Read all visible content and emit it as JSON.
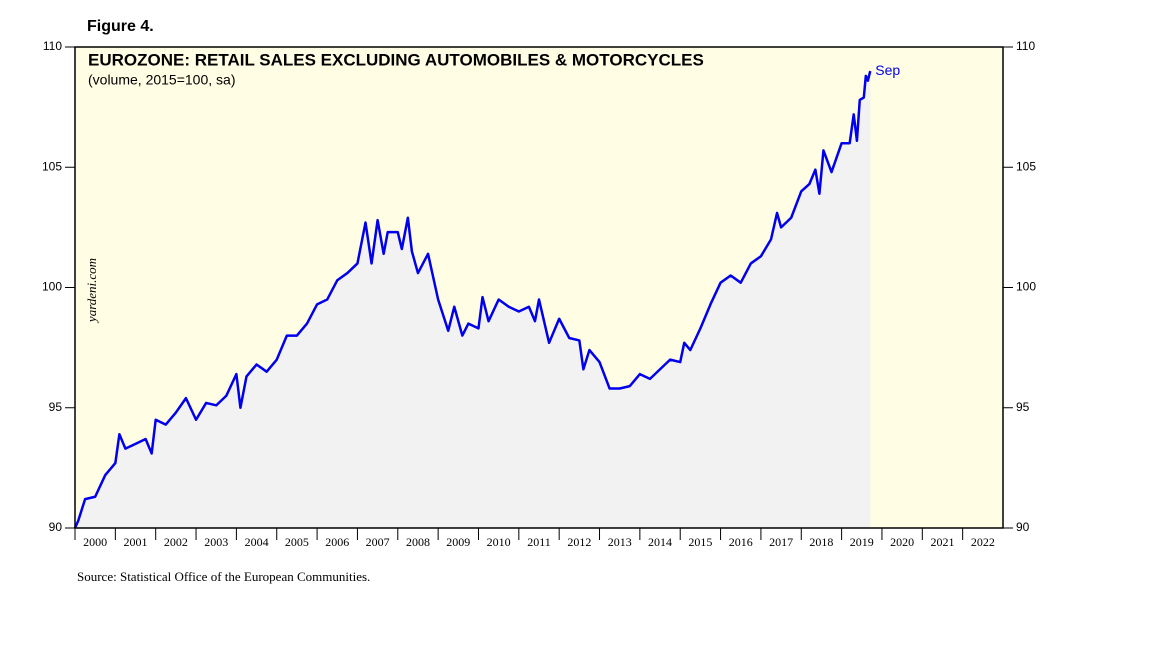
{
  "figure_label": "Figure 4.",
  "source": "Source: Statistical Office of the European Communities.",
  "watermark": "yardeni.com",
  "chart_data": {
    "type": "line",
    "title": "EUROZONE: RETAIL SALES EXCLUDING AUTOMOBILES & MOTORCYCLES",
    "subtitle": "(volume, 2015=100, sa)",
    "annotation": "Sep",
    "x": [
      2000.0,
      2000.08,
      2000.25,
      2000.5,
      2000.75,
      2001.0,
      2001.1,
      2001.25,
      2001.5,
      2001.75,
      2001.9,
      2002.0,
      2002.25,
      2002.5,
      2002.75,
      2003.0,
      2003.25,
      2003.5,
      2003.75,
      2004.0,
      2004.1,
      2004.25,
      2004.5,
      2004.75,
      2005.0,
      2005.25,
      2005.5,
      2005.75,
      2006.0,
      2006.25,
      2006.5,
      2006.75,
      2007.0,
      2007.2,
      2007.35,
      2007.5,
      2007.65,
      2007.75,
      2008.0,
      2008.1,
      2008.25,
      2008.35,
      2008.5,
      2008.75,
      2009.0,
      2009.25,
      2009.4,
      2009.6,
      2009.75,
      2010.0,
      2010.1,
      2010.25,
      2010.5,
      2010.75,
      2011.0,
      2011.25,
      2011.4,
      2011.5,
      2011.75,
      2012.0,
      2012.25,
      2012.5,
      2012.6,
      2012.75,
      2013.0,
      2013.25,
      2013.5,
      2013.75,
      2014.0,
      2014.25,
      2014.5,
      2014.75,
      2015.0,
      2015.1,
      2015.25,
      2015.5,
      2015.75,
      2016.0,
      2016.25,
      2016.5,
      2016.75,
      2017.0,
      2017.25,
      2017.4,
      2017.5,
      2017.75,
      2018.0,
      2018.2,
      2018.35,
      2018.45,
      2018.55,
      2018.75,
      2019.0,
      2019.2,
      2019.3,
      2019.38,
      2019.45,
      2019.55,
      2019.6,
      2019.65,
      2019.71
    ],
    "series": [
      {
        "name": "Retail sales",
        "color": "#0000ee",
        "values": [
          90.0,
          90.3,
          91.2,
          91.3,
          92.2,
          92.7,
          93.9,
          93.3,
          93.5,
          93.7,
          93.1,
          94.5,
          94.3,
          94.8,
          95.4,
          94.5,
          95.2,
          95.1,
          95.5,
          96.4,
          95.0,
          96.3,
          96.8,
          96.5,
          97.0,
          98.0,
          98.0,
          98.5,
          99.3,
          99.5,
          100.3,
          100.6,
          101.0,
          102.7,
          101.0,
          102.8,
          101.4,
          102.3,
          102.3,
          101.6,
          102.9,
          101.5,
          100.6,
          101.4,
          99.5,
          98.2,
          99.2,
          98.0,
          98.5,
          98.3,
          99.6,
          98.6,
          99.5,
          99.2,
          99.0,
          99.2,
          98.6,
          99.5,
          97.7,
          98.7,
          97.9,
          97.8,
          96.6,
          97.4,
          96.9,
          95.8,
          95.8,
          95.9,
          96.4,
          96.2,
          96.6,
          97.0,
          96.9,
          97.7,
          97.4,
          98.3,
          99.3,
          100.2,
          100.5,
          100.2,
          101.0,
          101.3,
          102.0,
          103.1,
          102.5,
          102.9,
          104.0,
          104.3,
          104.9,
          103.9,
          105.7,
          104.8,
          106.0,
          106.0,
          107.2,
          106.1,
          107.8,
          107.9,
          108.8,
          108.6,
          109.0
        ]
      }
    ],
    "xlim": [
      2000,
      2023
    ],
    "xticks": [
      2000,
      2001,
      2002,
      2003,
      2004,
      2005,
      2006,
      2007,
      2008,
      2009,
      2010,
      2011,
      2012,
      2013,
      2014,
      2015,
      2016,
      2017,
      2018,
      2019,
      2020,
      2021,
      2022
    ],
    "ylim": [
      90,
      110
    ],
    "yticks": [
      90,
      95,
      100,
      105,
      110
    ]
  }
}
